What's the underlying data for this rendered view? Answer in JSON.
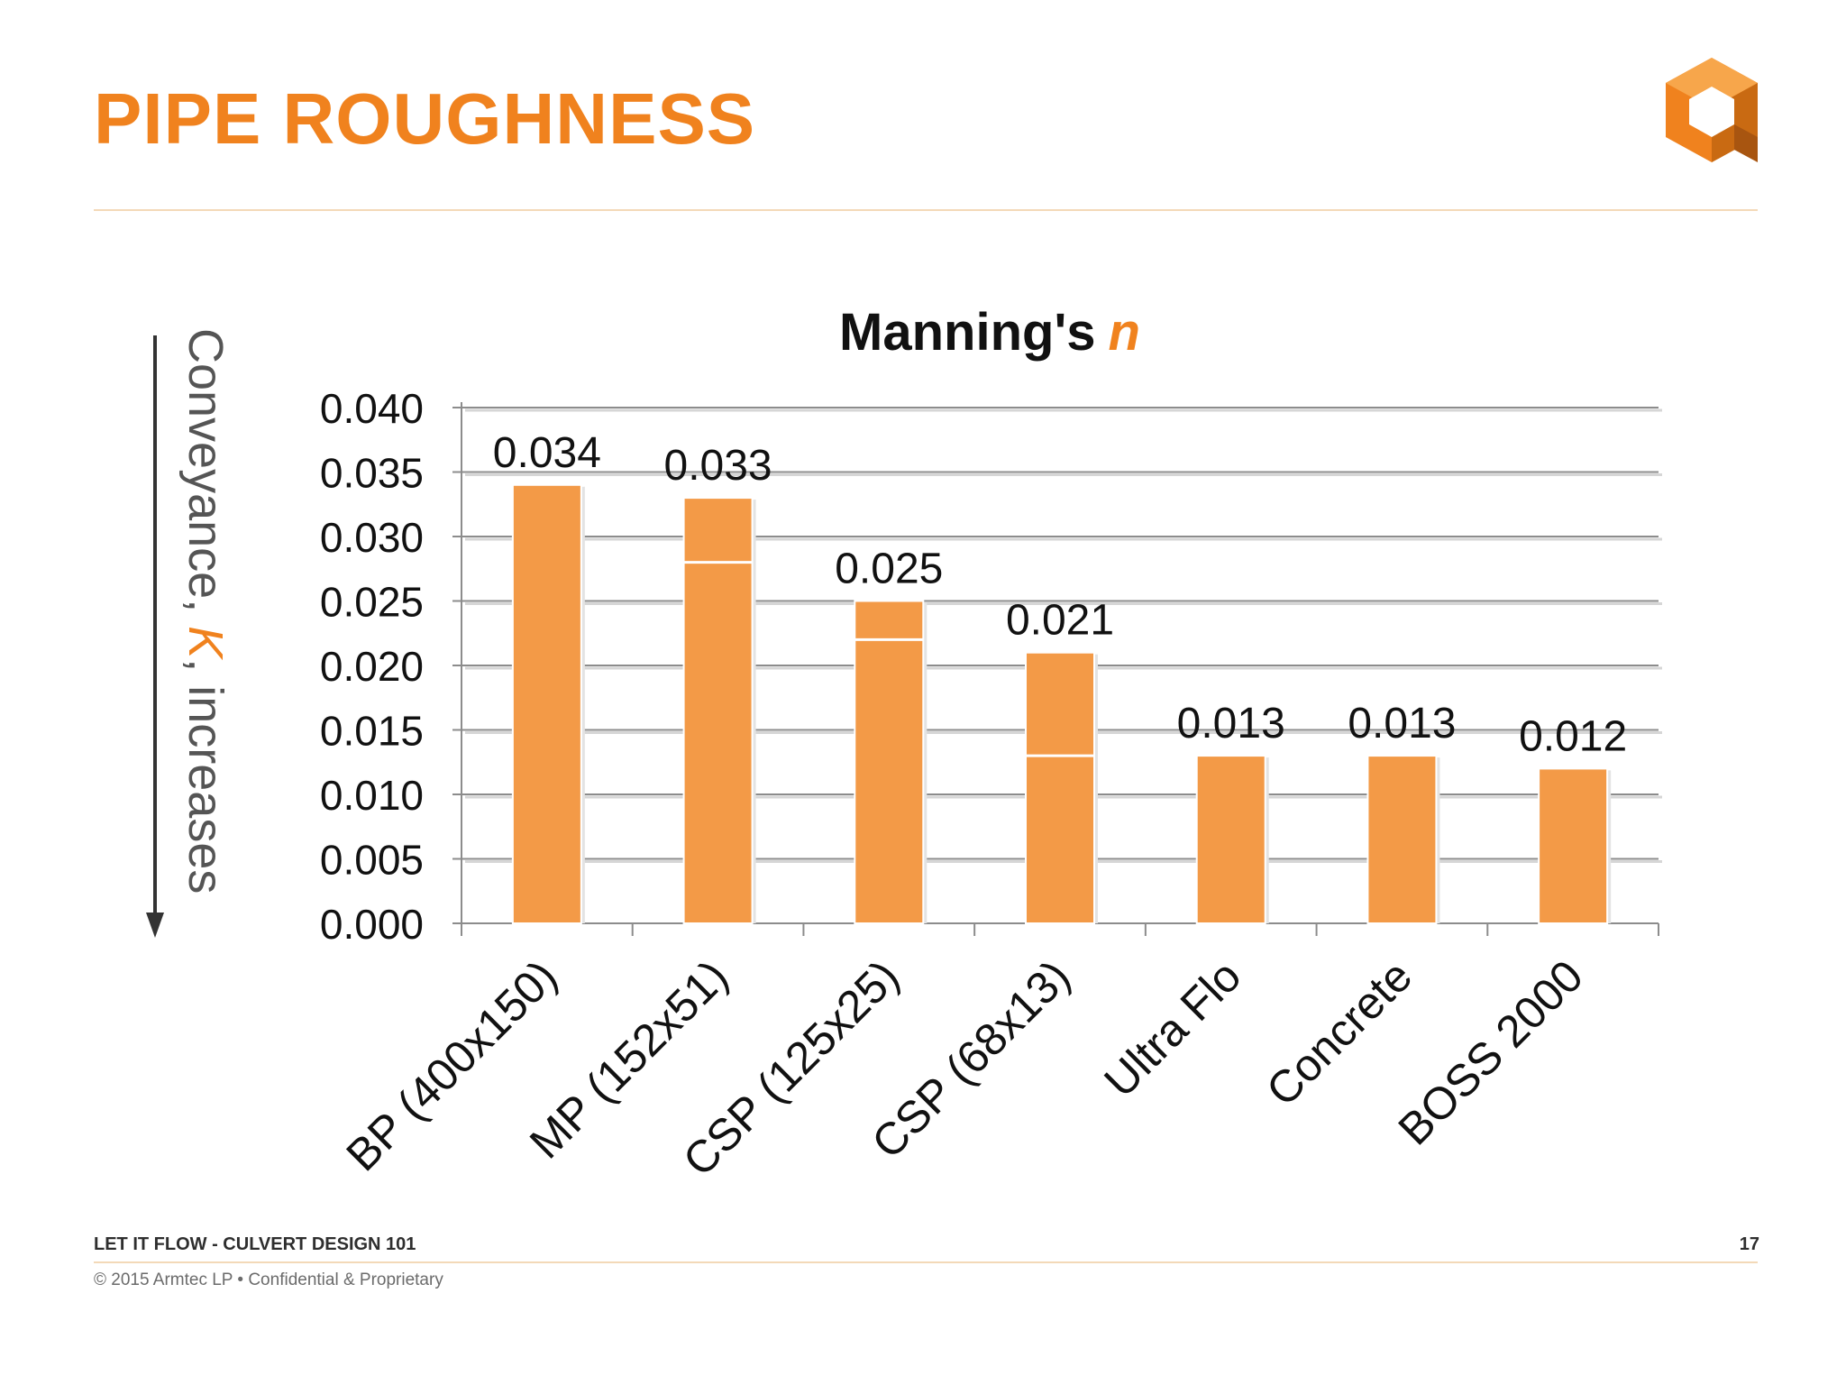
{
  "slide": {
    "title": "PIPE ROUGHNESS",
    "footer_title": "LET IT FLOW - CULVERT DESIGN 101",
    "page_number": "17",
    "copyright": "© 2015 Armtec LP •  Confidential & Proprietary"
  },
  "side_caption": {
    "prefix": "Conveyance, ",
    "symbol": "K",
    "suffix": ", increases"
  },
  "colors": {
    "accent": "#f0821e",
    "bar": "#f39a47",
    "text": "#111111"
  },
  "chart_data": {
    "type": "bar",
    "title": "Manning's",
    "title_symbol": "n",
    "categories": [
      "BP (400x150)",
      "MP (152x51)",
      "CSP (125x25)",
      "CSP (68x13)",
      "Ultra Flo",
      "Concrete",
      "BOSS 2000"
    ],
    "values": [
      0.034,
      0.033,
      0.025,
      0.021,
      0.013,
      0.013,
      0.012
    ],
    "value_labels": [
      "0.034",
      "0.033",
      "0.025",
      "0.021",
      "0.013",
      "0.013",
      "0.012"
    ],
    "range_lower_values": [
      null,
      0.028,
      0.022,
      0.013,
      null,
      null,
      null
    ],
    "ylim": [
      0,
      0.04
    ],
    "yticks": [
      "0.000",
      "0.005",
      "0.010",
      "0.015",
      "0.020",
      "0.025",
      "0.030",
      "0.035",
      "0.040"
    ],
    "grid": true,
    "xlabel": "",
    "ylabel": ""
  }
}
